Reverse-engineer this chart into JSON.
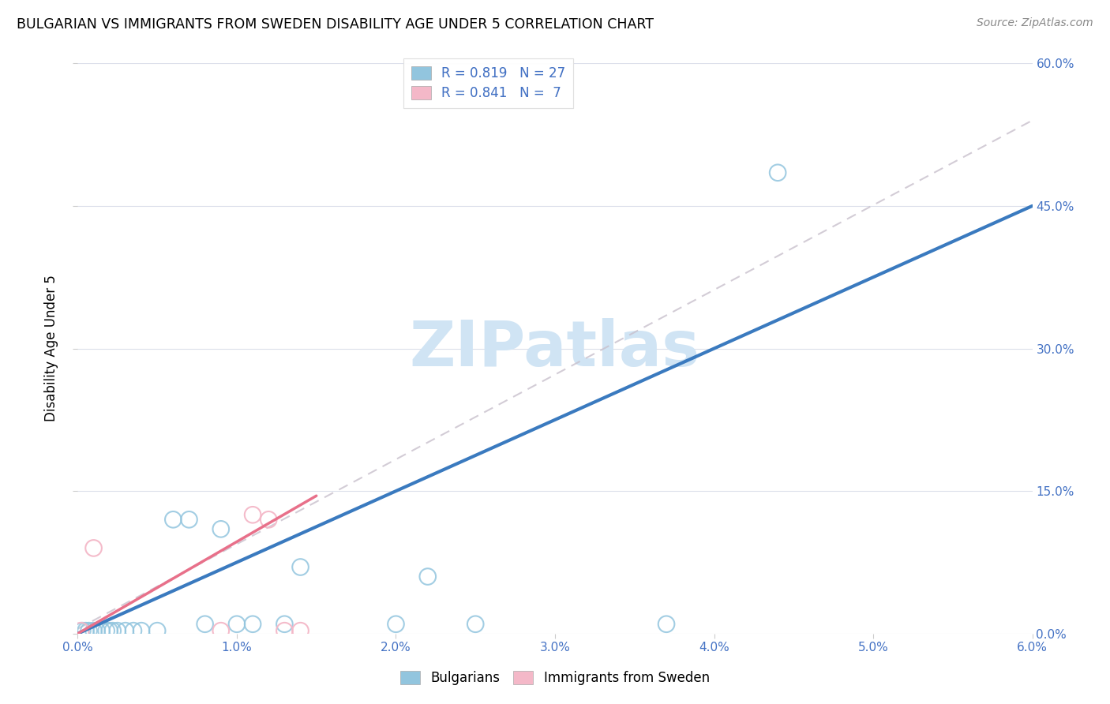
{
  "title": "BULGARIAN VS IMMIGRANTS FROM SWEDEN DISABILITY AGE UNDER 5 CORRELATION CHART",
  "source": "Source: ZipAtlas.com",
  "ylabel": "Disability Age Under 5",
  "xlim": [
    0.0,
    0.06
  ],
  "ylim": [
    0.0,
    0.6
  ],
  "xticks": [
    0.0,
    0.01,
    0.02,
    0.03,
    0.04,
    0.05,
    0.06
  ],
  "yticks": [
    0.0,
    0.15,
    0.3,
    0.45,
    0.6
  ],
  "xticklabels": [
    "0.0%",
    "1.0%",
    "2.0%",
    "3.0%",
    "4.0%",
    "5.0%",
    "6.0%"
  ],
  "yticklabels": [
    "0.0%",
    "15.0%",
    "30.0%",
    "45.0%",
    "60.0%"
  ],
  "bulgarian_color": "#92c5de",
  "immigrant_color": "#f4b8c8",
  "r_bulgarian": 0.819,
  "n_bulgarian": 27,
  "r_immigrant": 0.841,
  "n_immigrant": 7,
  "blue_line_color": "#3a7abf",
  "pink_line_color": "#e8708a",
  "dashed_line_color": "#c8c0cc",
  "watermark_color": "#d0e4f4",
  "tick_color": "#4472c4",
  "bulgarian_x": [
    0.0003,
    0.0005,
    0.0007,
    0.001,
    0.0012,
    0.0015,
    0.0018,
    0.002,
    0.0022,
    0.0025,
    0.003,
    0.0035,
    0.004,
    0.005,
    0.006,
    0.007,
    0.008,
    0.009,
    0.01,
    0.011,
    0.013,
    0.014,
    0.02,
    0.022,
    0.025,
    0.044,
    0.037
  ],
  "bulgarian_y": [
    0.003,
    0.003,
    0.003,
    0.003,
    0.003,
    0.003,
    0.003,
    0.003,
    0.003,
    0.003,
    0.003,
    0.003,
    0.003,
    0.003,
    0.12,
    0.12,
    0.01,
    0.11,
    0.01,
    0.01,
    0.01,
    0.07,
    0.01,
    0.06,
    0.01,
    0.485,
    0.01
  ],
  "immigrant_x": [
    0.0002,
    0.001,
    0.009,
    0.011,
    0.012,
    0.013,
    0.014
  ],
  "immigrant_y": [
    0.003,
    0.09,
    0.003,
    0.125,
    0.12,
    0.003,
    0.003
  ],
  "blue_line_x": [
    0.0,
    0.06
  ],
  "blue_line_y": [
    0.0,
    0.45
  ],
  "pink_line_x": [
    0.0,
    0.015
  ],
  "pink_line_y": [
    0.0,
    0.145
  ],
  "dash_line_x": [
    0.0,
    0.06
  ],
  "dash_line_y": [
    0.005,
    0.54
  ]
}
